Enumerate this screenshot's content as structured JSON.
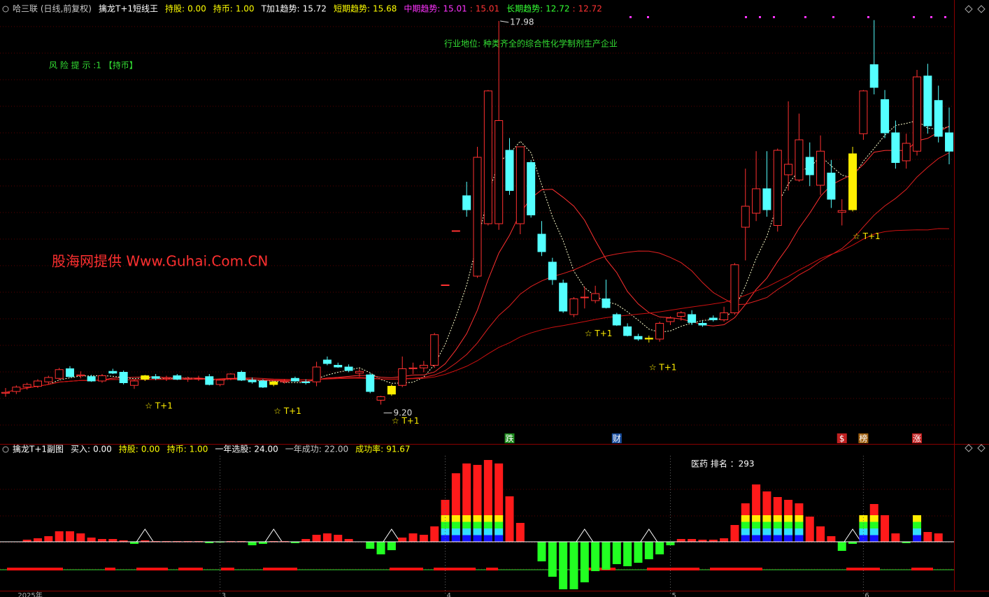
{
  "chart_data": {
    "type": "candlestick",
    "header": [
      {
        "label": "哈三联 (日线,前复权)",
        "color": "#c8c8c8"
      },
      {
        "label": "擒龙T+1短线王",
        "color": "#ffffff"
      },
      {
        "label": "持股:",
        "value": 0,
        "value_label": "0.00",
        "color": "#ffff00"
      },
      {
        "label": "持币:",
        "value": 1,
        "value_label": "1.00",
        "color": "#ffff00"
      },
      {
        "label": "T加1趋势:",
        "value": 15.72,
        "color": "#ffffff"
      },
      {
        "label": "短期趋势:",
        "value": 15.68,
        "color": "#ffff00"
      },
      {
        "label": "中期趋势:",
        "value": 15.01,
        "color": "#ff33ff",
        "extra": 15.01,
        "extra_color": "#ff3333"
      },
      {
        "label": "长期趋势:",
        "value": 12.72,
        "color": "#33ff33",
        "extra": 12.72,
        "extra_color": "#ff3333"
      }
    ],
    "sub_header": [
      {
        "label": "擒龙T+1副图",
        "color": "#ffffff"
      },
      {
        "label": "买入:",
        "value": 0,
        "value_label": "0.00",
        "color": "#ffffff"
      },
      {
        "label": "持股:",
        "value": 0,
        "value_label": "0.00",
        "color": "#ffff00"
      },
      {
        "label": "持币:",
        "value": 1,
        "value_label": "1.00",
        "color": "#ffff00"
      },
      {
        "label": "一年选股:",
        "value": 24,
        "value_label": "24.00",
        "color": "#ffffff"
      },
      {
        "label": "一年成功:",
        "value": 22,
        "value_label": "22.00",
        "color": "#c8c8c8"
      },
      {
        "label": "成功率:",
        "value": 91.67,
        "color": "#ffff00"
      }
    ],
    "annotations": {
      "risk": "风 险 提 示 :1 【持币】",
      "industry": "行业地位: 种类齐全的综合性化学制剂生产企业",
      "watermark": "股海网提供 Www.Guhai.Com.CN",
      "rank": "医药 排名 ：293",
      "high": "17.98",
      "high_index": 46,
      "low": "9.20",
      "low_index": 35
    },
    "signal_label": "☆ T+1",
    "signal_days": [
      13,
      25,
      36,
      54,
      60,
      79
    ],
    "yellow_days": [
      13,
      25,
      36,
      60,
      79
    ],
    "badges": [
      {
        "text": "跌",
        "index": 47,
        "color": "#1a8a1a"
      },
      {
        "text": "财",
        "index": 57,
        "color": "#1a4fa0"
      },
      {
        "text": "$",
        "index": 78,
        "color": "#c02020"
      },
      {
        "text": "榜",
        "index": 80,
        "color": "#a06010"
      },
      {
        "text": "涨",
        "index": 85,
        "color": "#c02020"
      }
    ],
    "x_labels": [
      {
        "label": "2025年",
        "index": 1
      },
      {
        "label": "3",
        "index": 20
      },
      {
        "label": "4",
        "index": 41
      },
      {
        "label": "5",
        "index": 62
      },
      {
        "label": "6",
        "index": 80
      }
    ],
    "ylim": [
      8.3,
      18.46
    ],
    "candles": [
      [
        9.46,
        9.58,
        9.38,
        9.48
      ],
      [
        9.5,
        9.64,
        9.44,
        9.6
      ],
      [
        9.6,
        9.7,
        9.54,
        9.66
      ],
      [
        9.62,
        9.78,
        9.58,
        9.74
      ],
      [
        9.72,
        9.86,
        9.66,
        9.82
      ],
      [
        9.8,
        10.04,
        9.76,
        10
      ],
      [
        10.02,
        10.08,
        9.82,
        9.84
      ],
      [
        9.86,
        9.96,
        9.8,
        9.88
      ],
      [
        9.84,
        9.88,
        9.72,
        9.74
      ],
      [
        9.74,
        9.9,
        9.7,
        9.86
      ],
      [
        9.96,
        10.02,
        9.9,
        9.92
      ],
      [
        9.94,
        9.98,
        9.66,
        9.7
      ],
      [
        9.64,
        9.78,
        9.56,
        9.74
      ],
      [
        9.78,
        9.88,
        9.74,
        9.86
      ],
      [
        9.84,
        9.9,
        9.76,
        9.8
      ],
      [
        9.8,
        9.86,
        9.74,
        9.82
      ],
      [
        9.86,
        9.9,
        9.76,
        9.78
      ],
      [
        9.78,
        9.84,
        9.72,
        9.8
      ],
      [
        9.8,
        9.86,
        9.74,
        9.8
      ],
      [
        9.84,
        9.9,
        9.64,
        9.66
      ],
      [
        9.66,
        9.78,
        9.62,
        9.76
      ],
      [
        9.8,
        9.92,
        9.76,
        9.9
      ],
      [
        9.94,
        9.98,
        9.74,
        9.76
      ],
      [
        9.76,
        9.82,
        9.68,
        9.72
      ],
      [
        9.74,
        9.78,
        9.58,
        9.6
      ],
      [
        9.66,
        9.74,
        9.62,
        9.72
      ],
      [
        9.72,
        9.78,
        9.68,
        9.74
      ],
      [
        9.8,
        9.84,
        9.72,
        9.74
      ],
      [
        9.72,
        9.78,
        9.66,
        9.7
      ],
      [
        9.72,
        10.18,
        9.62,
        10.06
      ],
      [
        10.22,
        10.3,
        10.1,
        10.14
      ],
      [
        10.1,
        10.16,
        10.04,
        10.06
      ],
      [
        10.06,
        10.12,
        9.94,
        9.98
      ],
      [
        9.92,
        10.02,
        9.84,
        9.96
      ],
      [
        9.88,
        9.92,
        9.46,
        9.5
      ],
      [
        9.3,
        9.4,
        9.2,
        9.38
      ],
      [
        9.44,
        9.66,
        9.4,
        9.62
      ],
      [
        9.64,
        10.3,
        9.6,
        10.02
      ],
      [
        10.02,
        10.16,
        9.9,
        10.04
      ],
      [
        10.04,
        10.2,
        9.94,
        10.1
      ],
      [
        10.1,
        10.84,
        10.04,
        10.8
      ],
      [
        11.94,
        11.94,
        11.94,
        11.94
      ],
      [
        13.18,
        13.18,
        13.18,
        13.18
      ],
      [
        13.98,
        14.3,
        13.5,
        13.66
      ],
      [
        12.14,
        15.1,
        12.1,
        14.86
      ],
      [
        13.34,
        16.4,
        13.3,
        16.38
      ],
      [
        13.34,
        17.98,
        13.2,
        15.7
      ],
      [
        15.02,
        15.3,
        14,
        14.1
      ],
      [
        13.34,
        15.1,
        13.1,
        15.1
      ],
      [
        14.74,
        14.8,
        13.48,
        13.54
      ],
      [
        13.1,
        13.4,
        12.6,
        12.7
      ],
      [
        12.46,
        12.56,
        11.94,
        12.06
      ],
      [
        11.98,
        12.06,
        11.3,
        11.34
      ],
      [
        11.26,
        11.66,
        11.2,
        11.62
      ],
      [
        11.66,
        11.9,
        11.4,
        11.66
      ],
      [
        11.58,
        11.92,
        11.52,
        11.74
      ],
      [
        11.62,
        12.06,
        11.4,
        11.42
      ],
      [
        11.26,
        11.3,
        11,
        11.02
      ],
      [
        10.98,
        11.06,
        10.76,
        10.78
      ],
      [
        10.76,
        10.82,
        10.66,
        10.7
      ],
      [
        10.7,
        10.78,
        10.62,
        10.72
      ],
      [
        10.7,
        11.1,
        10.64,
        11.06
      ],
      [
        11.1,
        11.22,
        11.02,
        11.18
      ],
      [
        11.22,
        11.34,
        11.12,
        11.3
      ],
      [
        11.26,
        11.36,
        11.02,
        11.08
      ],
      [
        11.06,
        11.12,
        10.98,
        11.02
      ],
      [
        11.18,
        11.24,
        11.1,
        11.14
      ],
      [
        11.14,
        11.44,
        11.1,
        11.3
      ],
      [
        11.3,
        12.44,
        11.26,
        12.4
      ],
      [
        13.26,
        14.6,
        12.5,
        13.74
      ],
      [
        13.58,
        15,
        13.4,
        14.14
      ],
      [
        14.14,
        15,
        13.5,
        13.66
      ],
      [
        13.3,
        15.06,
        13.16,
        15.02
      ],
      [
        14.46,
        16.14,
        14.1,
        14.7
      ],
      [
        14.34,
        15.86,
        14.3,
        15.26
      ],
      [
        14.86,
        15.2,
        14.2,
        14.46
      ],
      [
        14.22,
        15.36,
        14,
        15
      ],
      [
        14.5,
        14.8,
        13.7,
        13.9
      ],
      [
        13.6,
        13.9,
        13.3,
        13.64
      ],
      [
        13.66,
        15.1,
        13.62,
        14.94
      ],
      [
        15.4,
        16.4,
        15.26,
        16.38
      ],
      [
        16.98,
        18,
        16.3,
        16.46
      ],
      [
        16.18,
        16.4,
        15.3,
        15.42
      ],
      [
        15.42,
        15.7,
        14.6,
        14.74
      ],
      [
        14.78,
        15.4,
        14.6,
        15.18
      ],
      [
        15,
        16.86,
        14.9,
        16.7
      ],
      [
        16.72,
        17,
        15.4,
        15.58
      ],
      [
        16.16,
        16.5,
        15.2,
        15.34
      ],
      [
        15.42,
        16,
        14.7,
        15
      ]
    ],
    "sub_ylim": [
      -70,
      120
    ],
    "sub_values": [
      0,
      0,
      3,
      5,
      8,
      15,
      15,
      12,
      6,
      4,
      4,
      2,
      -3,
      2,
      1,
      1,
      1,
      1,
      1,
      -2,
      -1,
      1,
      1,
      -5,
      -3,
      1,
      1,
      -2,
      4,
      10,
      12,
      10,
      4,
      0,
      -10,
      -18,
      -12,
      6,
      12,
      10,
      22,
      60,
      98,
      112,
      110,
      117,
      112,
      65,
      27,
      0,
      -28,
      -50,
      -68,
      -68,
      -58,
      -42,
      -40,
      -32,
      -35,
      -30,
      -25,
      -18,
      -5,
      4,
      4,
      3,
      3,
      5,
      24,
      55,
      82,
      72,
      64,
      60,
      55,
      36,
      22,
      8,
      -13,
      -3,
      35,
      54,
      38,
      12,
      -2,
      36,
      14,
      12,
      0
    ],
    "strong_days": [
      41,
      42,
      43,
      44,
      45,
      46,
      69,
      70,
      71,
      72,
      73,
      74,
      80,
      81,
      85
    ]
  }
}
